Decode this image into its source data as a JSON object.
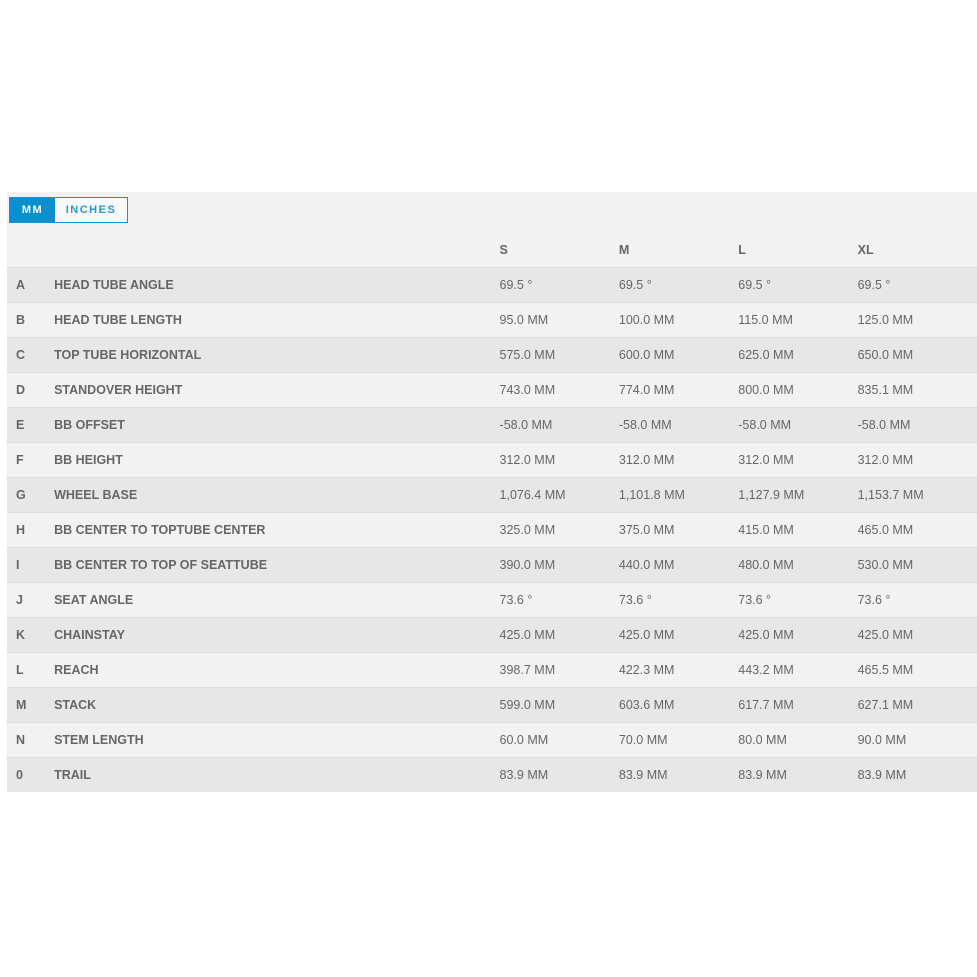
{
  "units": {
    "active": "MM",
    "options": [
      "MM",
      "INCHES"
    ]
  },
  "sizes": [
    "S",
    "M",
    "L",
    "XL"
  ],
  "rows": [
    {
      "letter": "A",
      "name": "HEAD TUBE ANGLE",
      "values": [
        "69.5 °",
        "69.5 °",
        "69.5 °",
        "69.5 °"
      ]
    },
    {
      "letter": "B",
      "name": "HEAD TUBE LENGTH",
      "values": [
        "95.0 MM",
        "100.0 MM",
        "115.0 MM",
        "125.0 MM"
      ]
    },
    {
      "letter": "C",
      "name": "TOP TUBE HORIZONTAL",
      "values": [
        "575.0 MM",
        "600.0 MM",
        "625.0 MM",
        "650.0 MM"
      ]
    },
    {
      "letter": "D",
      "name": "STANDOVER HEIGHT",
      "values": [
        "743.0 MM",
        "774.0 MM",
        "800.0 MM",
        "835.1 MM"
      ]
    },
    {
      "letter": "E",
      "name": "BB OFFSET",
      "values": [
        "-58.0 MM",
        "-58.0 MM",
        "-58.0 MM",
        "-58.0 MM"
      ]
    },
    {
      "letter": "F",
      "name": "BB HEIGHT",
      "values": [
        "312.0 MM",
        "312.0 MM",
        "312.0 MM",
        "312.0 MM"
      ]
    },
    {
      "letter": "G",
      "name": "WHEEL BASE",
      "values": [
        "1,076.4 MM",
        "1,101.8 MM",
        "1,127.9 MM",
        "1,153.7 MM"
      ]
    },
    {
      "letter": "H",
      "name": "BB CENTER TO TOPTUBE CENTER",
      "values": [
        "325.0 MM",
        "375.0 MM",
        "415.0 MM",
        "465.0 MM"
      ]
    },
    {
      "letter": "I",
      "name": "BB CENTER TO TOP OF SEATTUBE",
      "values": [
        "390.0 MM",
        "440.0 MM",
        "480.0 MM",
        "530.0 MM"
      ]
    },
    {
      "letter": "J",
      "name": "SEAT ANGLE",
      "values": [
        "73.6 °",
        "73.6 °",
        "73.6 °",
        "73.6 °"
      ]
    },
    {
      "letter": "K",
      "name": "CHAINSTAY",
      "values": [
        "425.0 MM",
        "425.0 MM",
        "425.0 MM",
        "425.0 MM"
      ]
    },
    {
      "letter": "L",
      "name": "REACH",
      "values": [
        "398.7 MM",
        "422.3 MM",
        "443.2 MM",
        "465.5 MM"
      ]
    },
    {
      "letter": "M",
      "name": "STACK",
      "values": [
        "599.0 MM",
        "603.6 MM",
        "617.7 MM",
        "627.1 MM"
      ]
    },
    {
      "letter": "N",
      "name": "STEM LENGTH",
      "values": [
        "60.0 MM",
        "70.0 MM",
        "80.0 MM",
        "90.0 MM"
      ]
    },
    {
      "letter": "0",
      "name": "TRAIL",
      "values": [
        "83.9 MM",
        "83.9 MM",
        "83.9 MM",
        "83.9 MM"
      ]
    }
  ]
}
